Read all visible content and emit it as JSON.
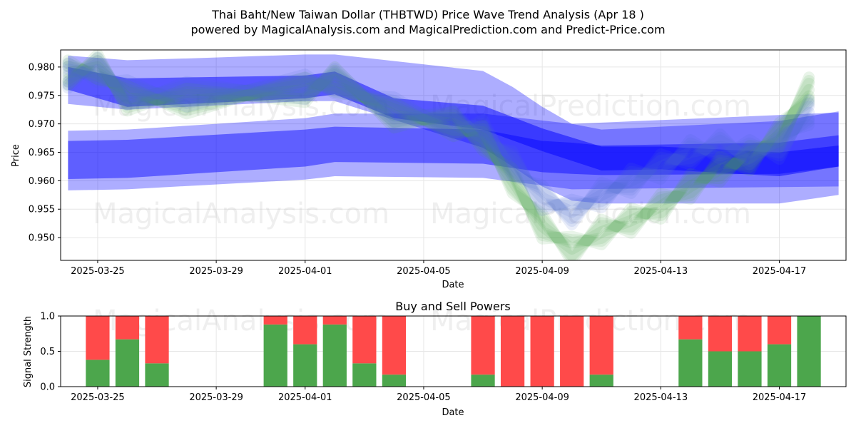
{
  "title_line1": "Thai Baht/New Taiwan Dollar (THBTWD) Price Wave Trend Analysis (Apr 18 )",
  "title_line2": "powered by MagicalAnalysis.com and MagicalPrediction.com and Predict-Price.com",
  "watermarks": [
    "MagicalAnalysis.com",
    "MagicalPrediction.com"
  ],
  "colors": {
    "band_blue": "#0000ff",
    "wave_green": "#4aa84a",
    "buy_green": "#4ca64c",
    "sell_red": "#ff4a4a"
  },
  "chart_data": [
    {
      "type": "line",
      "xlabel": "Date",
      "ylabel": "Price",
      "x_ticks": [
        "2025-03-25",
        "2025-03-29",
        "2025-04-01",
        "2025-04-05",
        "2025-04-09",
        "2025-04-13",
        "2025-04-17"
      ],
      "y_ticks": [
        "0.950",
        "0.955",
        "0.960",
        "0.965",
        "0.970",
        "0.975",
        "0.980"
      ],
      "ylim": [
        0.946,
        0.983
      ],
      "xlim": [
        "2025-03-23T18:00",
        "2025-04-19T06:00"
      ],
      "grid": true,
      "series": [
        {
          "style": "band",
          "x": [
            "2025-03-24",
            "2025-03-26",
            "2025-03-28",
            "2025-04-01",
            "2025-04-02",
            "2025-04-07",
            "2025-04-08",
            "2025-04-09",
            "2025-04-10",
            "2025-04-11",
            "2025-04-17",
            "2025-04-19"
          ],
          "upper": [
            0.982,
            0.9812,
            0.9815,
            0.9822,
            0.9822,
            0.9793,
            0.9765,
            0.973,
            0.97,
            0.969,
            0.9705,
            0.9722
          ],
          "lower": [
            0.9735,
            0.9725,
            0.973,
            0.974,
            0.974,
            0.9658,
            0.9625,
            0.959,
            0.9565,
            0.956,
            0.956,
            0.9575
          ],
          "opacity": 0.32
        },
        {
          "style": "band",
          "x": [
            "2025-03-24",
            "2025-03-26",
            "2025-04-01",
            "2025-04-02",
            "2025-04-07",
            "2025-04-10",
            "2025-04-19"
          ],
          "upper": [
            0.9688,
            0.969,
            0.971,
            0.9718,
            0.9718,
            0.97,
            0.972
          ],
          "lower": [
            0.9583,
            0.9585,
            0.9602,
            0.9608,
            0.9605,
            0.9585,
            0.959
          ],
          "opacity": 0.32
        },
        {
          "style": "band",
          "x": [
            "2025-03-24",
            "2025-03-26",
            "2025-04-01",
            "2025-04-02",
            "2025-04-07",
            "2025-04-09",
            "2025-04-10",
            "2025-04-11",
            "2025-04-17",
            "2025-04-19"
          ],
          "upper": [
            0.967,
            0.9672,
            0.969,
            0.9695,
            0.969,
            0.967,
            0.9667,
            0.9662,
            0.9667,
            0.968
          ],
          "lower": [
            0.9603,
            0.9605,
            0.9625,
            0.9633,
            0.963,
            0.9615,
            0.9612,
            0.961,
            0.9612,
            0.9625
          ],
          "opacity": 0.45
        },
        {
          "style": "band",
          "x": [
            "2025-03-24",
            "2025-03-26",
            "2025-04-01",
            "2025-04-02",
            "2025-04-04",
            "2025-04-07",
            "2025-04-09",
            "2025-04-11",
            "2025-04-13",
            "2025-04-17",
            "2025-04-19"
          ],
          "upper": [
            0.98,
            0.978,
            0.9785,
            0.9792,
            0.9745,
            0.9732,
            0.9692,
            0.966,
            0.966,
            0.965,
            0.9662
          ],
          "lower": [
            0.976,
            0.973,
            0.9745,
            0.9752,
            0.971,
            0.969,
            0.9652,
            0.9618,
            0.962,
            0.9608,
            0.9625
          ],
          "opacity": 0.5
        },
        {
          "style": "wave",
          "x": [
            "2025-03-24",
            "2025-03-25",
            "2025-03-26",
            "2025-03-28",
            "2025-04-01",
            "2025-04-02",
            "2025-04-04",
            "2025-04-06",
            "2025-04-07",
            "2025-04-08",
            "2025-04-09",
            "2025-04-10",
            "2025-04-11",
            "2025-04-12",
            "2025-04-13",
            "2025-04-14",
            "2025-04-15",
            "2025-04-16",
            "2025-04-17",
            "2025-04-18"
          ],
          "values": [
            0.979,
            0.98,
            0.9745,
            0.974,
            0.976,
            0.9778,
            0.9715,
            0.97,
            0.9675,
            0.96,
            0.952,
            0.948,
            0.951,
            0.953,
            0.9555,
            0.959,
            0.962,
            0.964,
            0.968,
            0.976
          ],
          "color": "#4aa84a",
          "opacity": 0.12
        },
        {
          "style": "wave",
          "x": [
            "2025-03-24",
            "2025-03-25",
            "2025-03-26",
            "2025-03-28",
            "2025-04-01",
            "2025-04-02",
            "2025-04-04",
            "2025-04-06",
            "2025-04-07",
            "2025-04-08",
            "2025-04-09",
            "2025-04-10",
            "2025-04-11",
            "2025-04-12",
            "2025-04-13",
            "2025-04-14",
            "2025-04-15",
            "2025-04-16",
            "2025-04-17",
            "2025-04-18"
          ],
          "values": [
            0.9785,
            0.9795,
            0.9755,
            0.9752,
            0.9765,
            0.9775,
            0.9725,
            0.9705,
            0.9685,
            0.963,
            0.957,
            0.9545,
            0.9575,
            0.96,
            0.9625,
            0.965,
            0.966,
            0.965,
            0.966,
            0.972
          ],
          "color": "#4a6ad0",
          "opacity": 0.12
        }
      ]
    },
    {
      "type": "bar",
      "title": "Buy and Sell Powers",
      "xlabel": "Date",
      "ylabel": "Signal Strength",
      "x_ticks": [
        "2025-03-25",
        "2025-03-29",
        "2025-04-01",
        "2025-04-05",
        "2025-04-09",
        "2025-04-13",
        "2025-04-17"
      ],
      "y_ticks": [
        "0.0",
        "0.5",
        "1.0"
      ],
      "ylim": [
        0,
        1
      ],
      "xlim": [
        "2025-03-23T18:00",
        "2025-04-19T06:00"
      ],
      "categories": [
        "2025-03-25",
        "2025-03-26",
        "2025-03-27",
        "2025-03-31",
        "2025-04-01",
        "2025-04-02",
        "2025-04-03",
        "2025-04-04",
        "2025-04-07",
        "2025-04-08",
        "2025-04-09",
        "2025-04-10",
        "2025-04-11",
        "2025-04-14",
        "2025-04-15",
        "2025-04-16",
        "2025-04-17",
        "2025-04-18"
      ],
      "series": [
        {
          "color": "#4ca64c",
          "values": [
            0.38,
            0.67,
            0.33,
            0.88,
            0.6,
            0.88,
            0.33,
            0.17,
            0.17,
            0.0,
            0.0,
            0.0,
            0.17,
            0.67,
            0.5,
            0.5,
            0.6,
            1.0
          ]
        },
        {
          "color": "#ff4a4a",
          "values": [
            0.62,
            0.33,
            0.67,
            0.12,
            0.4,
            0.12,
            0.67,
            0.83,
            0.83,
            1.0,
            1.0,
            1.0,
            0.83,
            0.33,
            0.5,
            0.5,
            0.4,
            0.0
          ]
        }
      ],
      "grid": true
    }
  ]
}
